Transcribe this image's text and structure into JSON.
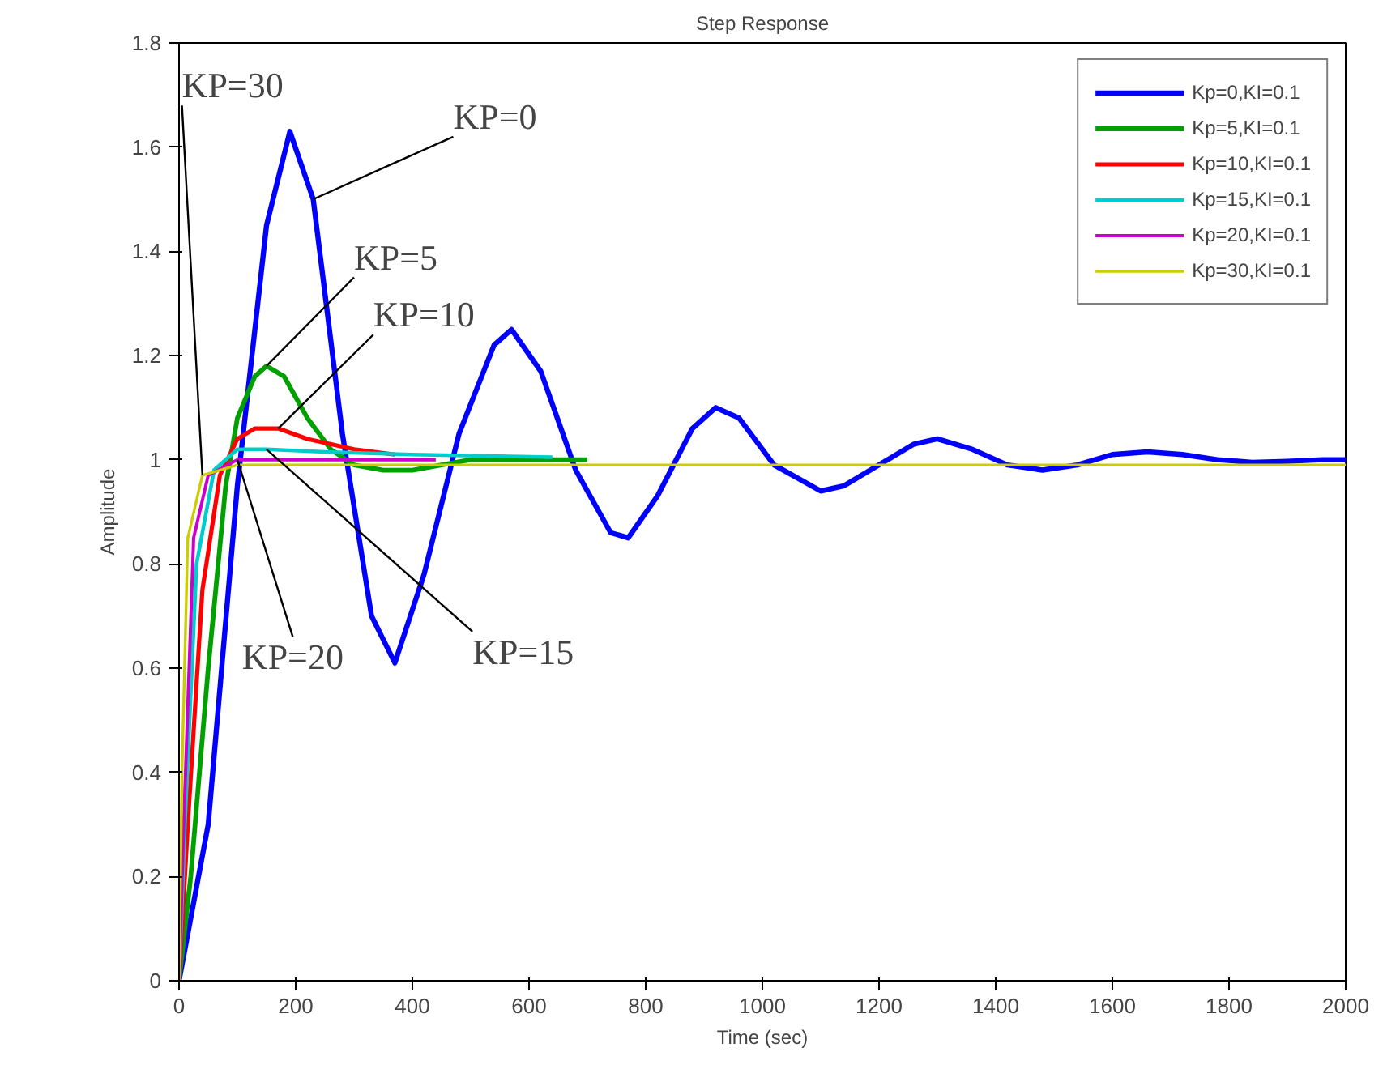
{
  "chart_data": {
    "type": "line",
    "title": "Step Response",
    "xlabel": "Time (sec)",
    "ylabel": "Amplitude",
    "xlim": [
      0,
      2000
    ],
    "ylim": [
      0,
      1.8
    ],
    "xticks": [
      0,
      200,
      400,
      600,
      800,
      1000,
      1200,
      1400,
      1600,
      1800,
      2000
    ],
    "yticks": [
      0,
      0.2,
      0.4,
      0.6,
      0.8,
      1,
      1.2,
      1.4,
      1.6,
      1.8
    ],
    "grid": false,
    "legend": "top right",
    "marker": "none",
    "line_style": "solid",
    "series": [
      {
        "name": "Kp=0,KI=0.1",
        "color": "#0000ff",
        "x": [
          0,
          50,
          100,
          150,
          190,
          230,
          280,
          330,
          370,
          420,
          480,
          540,
          570,
          620,
          680,
          740,
          770,
          820,
          880,
          920,
          960,
          1020,
          1100,
          1140,
          1200,
          1260,
          1300,
          1360,
          1420,
          1480,
          1540,
          1600,
          1660,
          1720,
          1780,
          1840,
          1900,
          1960,
          2000
        ],
        "values": [
          0,
          0.3,
          0.95,
          1.45,
          1.63,
          1.5,
          1.05,
          0.7,
          0.61,
          0.78,
          1.05,
          1.22,
          1.25,
          1.17,
          0.98,
          0.86,
          0.85,
          0.93,
          1.06,
          1.1,
          1.08,
          0.99,
          0.94,
          0.95,
          0.99,
          1.03,
          1.04,
          1.02,
          0.99,
          0.98,
          0.99,
          1.01,
          1.015,
          1.01,
          1.0,
          0.995,
          0.997,
          1.0,
          1.0
        ]
      },
      {
        "name": "Kp=5,KI=0.1",
        "color": "#00a000",
        "x": [
          0,
          20,
          50,
          80,
          100,
          130,
          150,
          180,
          220,
          260,
          300,
          350,
          400,
          450,
          500,
          700
        ],
        "values": [
          0,
          0.2,
          0.6,
          0.95,
          1.08,
          1.16,
          1.18,
          1.16,
          1.08,
          1.02,
          0.99,
          0.98,
          0.98,
          0.99,
          1.0,
          1.0
        ]
      },
      {
        "name": "Kp=10,KI=0.1",
        "color": "#ff0000",
        "x": [
          0,
          15,
          40,
          70,
          100,
          130,
          170,
          220,
          300,
          370
        ],
        "values": [
          0,
          0.3,
          0.75,
          0.97,
          1.04,
          1.06,
          1.06,
          1.04,
          1.02,
          1.01
        ]
      },
      {
        "name": "Kp=15,KI=0.1",
        "color": "#00cccc",
        "x": [
          0,
          10,
          30,
          60,
          100,
          150,
          250,
          400,
          640
        ],
        "values": [
          0,
          0.3,
          0.8,
          0.98,
          1.02,
          1.02,
          1.015,
          1.01,
          1.005
        ]
      },
      {
        "name": "Kp=20,KI=0.1",
        "color": "#cc00cc",
        "x": [
          0,
          8,
          25,
          50,
          100,
          200,
          440
        ],
        "values": [
          0,
          0.3,
          0.85,
          0.97,
          1.0,
          1.0,
          1.0
        ]
      },
      {
        "name": "Kp=30,KI=0.1",
        "color": "#cccc00",
        "x": [
          0,
          5,
          15,
          40,
          100,
          2000
        ],
        "values": [
          0,
          0.4,
          0.85,
          0.97,
          0.99,
          0.99
        ]
      }
    ],
    "annotations": [
      {
        "text": "KP=0",
        "x": 230,
        "y": 1.5
      },
      {
        "text": "KP=5",
        "x": 150,
        "y": 1.18
      },
      {
        "text": "KP=10",
        "x": 170,
        "y": 1.06
      },
      {
        "text": "KP=30",
        "x": 40,
        "y": 0.97
      },
      {
        "text": "KP=20",
        "x": 100,
        "y": 1.0
      },
      {
        "text": "KP=15",
        "x": 150,
        "y": 1.02
      }
    ]
  }
}
